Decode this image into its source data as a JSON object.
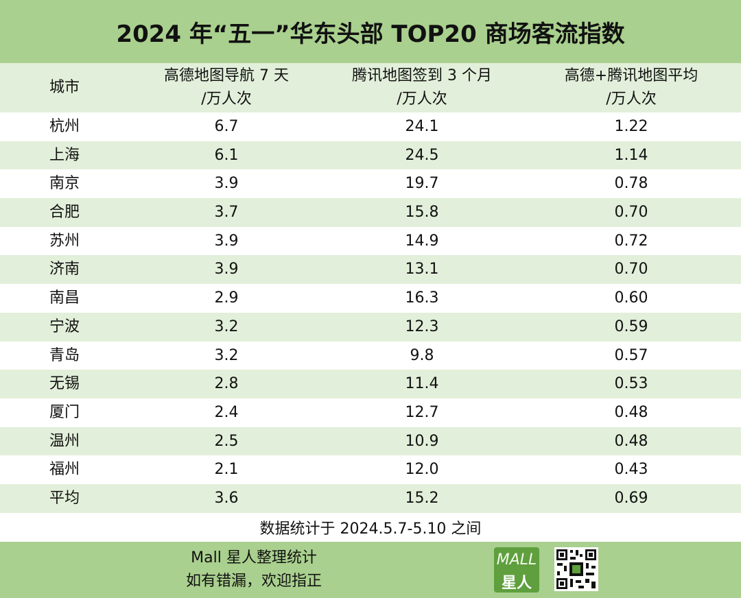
{
  "title": "2024 年“五一”华东头部 TOP20 商场客流指数",
  "header": {
    "city": "城市",
    "col1_line1": "高德地图导航 7 天",
    "col1_line2": "/万人次",
    "col2_line1": "腾讯地图签到 3 个月",
    "col2_line2": "/万人次",
    "col3_line1": "高德+腾讯地图平均",
    "col3_line2": "/万人次"
  },
  "rows": [
    {
      "city": "杭州",
      "v1": "6.7",
      "v2": "24.1",
      "v3": "1.22"
    },
    {
      "city": "上海",
      "v1": "6.1",
      "v2": "24.5",
      "v3": "1.14"
    },
    {
      "city": "南京",
      "v1": "3.9",
      "v2": "19.7",
      "v3": "0.78"
    },
    {
      "city": "合肥",
      "v1": "3.7",
      "v2": "15.8",
      "v3": "0.70"
    },
    {
      "city": "苏州",
      "v1": "3.9",
      "v2": "14.9",
      "v3": "0.72"
    },
    {
      "city": "济南",
      "v1": "3.9",
      "v2": "13.1",
      "v3": "0.70"
    },
    {
      "city": "南昌",
      "v1": "2.9",
      "v2": "16.3",
      "v3": "0.60"
    },
    {
      "city": "宁波",
      "v1": "3.2",
      "v2": "12.3",
      "v3": "0.59"
    },
    {
      "city": "青岛",
      "v1": "3.2",
      "v2": "9.8",
      "v3": "0.57"
    },
    {
      "city": "无锡",
      "v1": "2.8",
      "v2": "11.4",
      "v3": "0.53"
    },
    {
      "city": "厦门",
      "v1": "2.4",
      "v2": "12.7",
      "v3": "0.48"
    },
    {
      "city": "温州",
      "v1": "2.5",
      "v2": "10.9",
      "v3": "0.48"
    },
    {
      "city": "福州",
      "v1": "2.1",
      "v2": "12.0",
      "v3": "0.43"
    },
    {
      "city": "平均",
      "v1": "3.6",
      "v2": "15.2",
      "v3": "0.69"
    }
  ],
  "note": "数据统计于 2024.5.7-5.10 之间",
  "footer": {
    "credit_line1": "Mall 星人整理统计",
    "credit_line2": "如有错漏，欢迎指正",
    "logo_text_top": "MALL",
    "logo_text_bottom": "星人",
    "icon": "qr-code-icon"
  },
  "colors": {
    "title_bg": "#a9d08e",
    "stripe_bg": "#e2efda",
    "logo_bg": "#5f9f3e"
  }
}
